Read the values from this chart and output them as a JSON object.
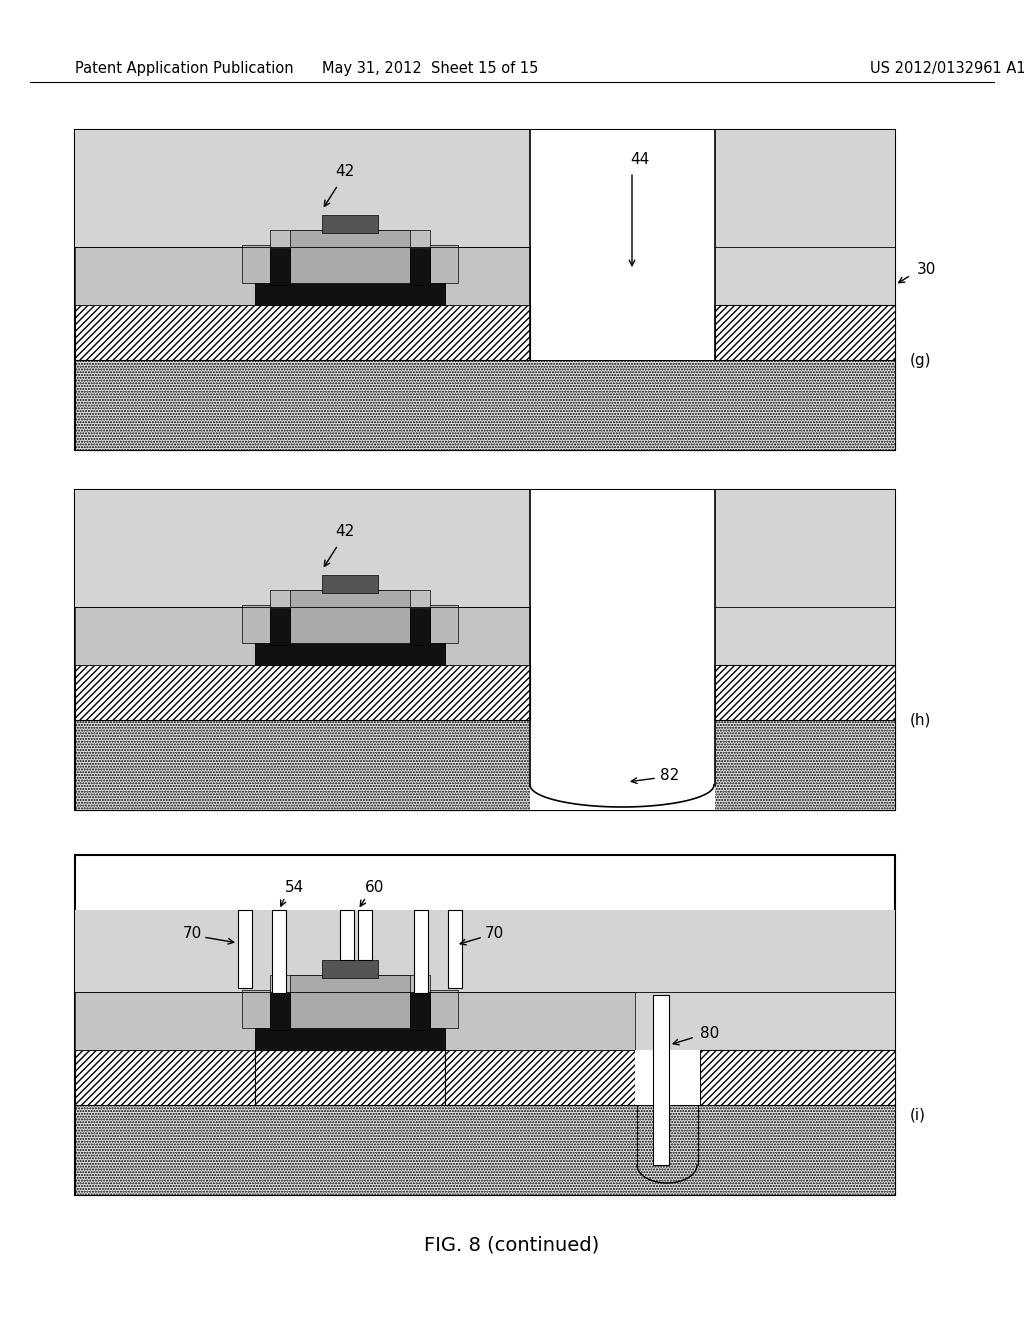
{
  "header_left": "Patent Application Publication",
  "header_center": "May 31, 2012  Sheet 15 of 15",
  "header_right": "US 2012/0132961 A1",
  "fig_caption": "FIG. 8 (continued)",
  "bg_color": "#ffffff"
}
